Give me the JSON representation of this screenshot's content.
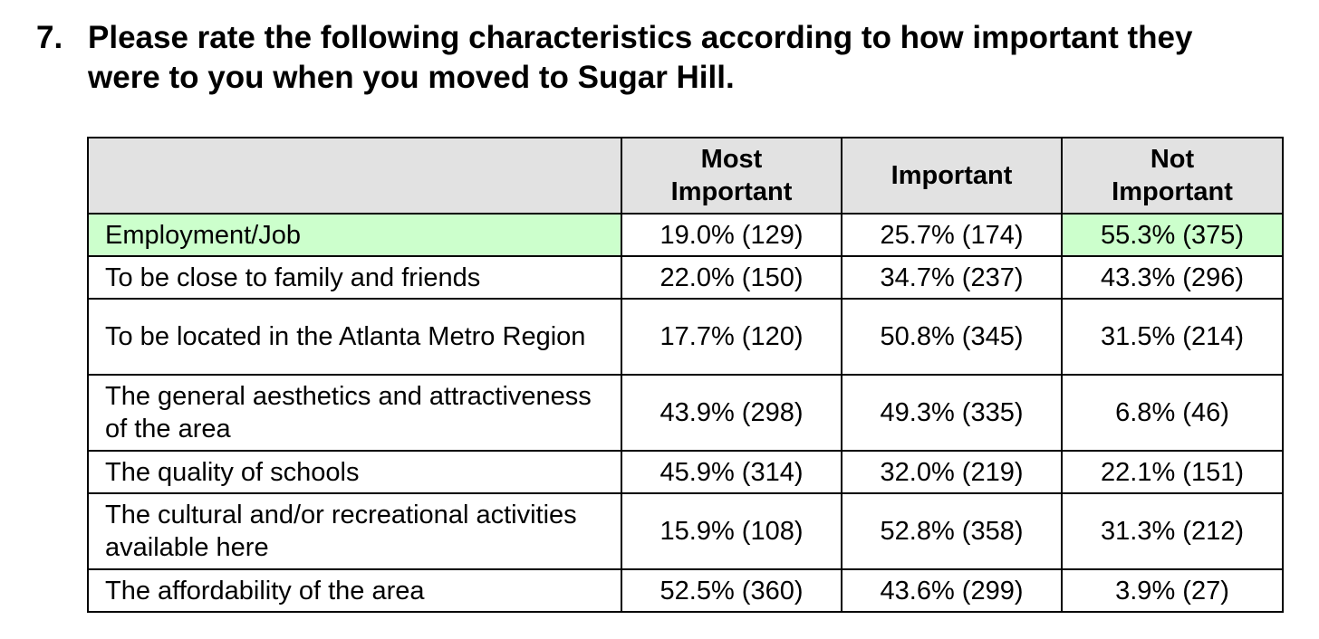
{
  "question": {
    "number": "7.",
    "text": "Please rate the following characteristics according to how important they were to you when you moved to Sugar Hill."
  },
  "table": {
    "headers": [
      "",
      "Most Important",
      "Important",
      "Not Important"
    ],
    "rows": [
      {
        "label": "Employment/Job",
        "most_important": "19.0% (129)",
        "important": "25.7% (174)",
        "not_important": "55.3% (375)"
      },
      {
        "label": "To be close to family and friends",
        "most_important": "22.0% (150)",
        "important": "34.7% (237)",
        "not_important": "43.3% (296)"
      },
      {
        "label": "To be located in the Atlanta Metro Region",
        "most_important": "17.7% (120)",
        "important": "50.8% (345)",
        "not_important": "31.5% (214)"
      },
      {
        "label": "The general aesthetics and attractiveness of the area",
        "most_important": "43.9% (298)",
        "important": "49.3% (335)",
        "not_important": "6.8% (46)"
      },
      {
        "label": "The quality of schools",
        "most_important": "45.9% (314)",
        "important": "32.0% (219)",
        "not_important": "22.1% (151)"
      },
      {
        "label": "The cultural and/or recreational activities available here",
        "most_important": "15.9% (108)",
        "important": "52.8% (358)",
        "not_important": "31.3% (212)"
      },
      {
        "label": "The affordability of the area",
        "most_important": "52.5% (360)",
        "important": "43.6% (299)",
        "not_important": "3.9% (27)"
      }
    ]
  },
  "colors": {
    "header_background": "#e2e2e2",
    "highlight_background": "#ccffcc"
  }
}
